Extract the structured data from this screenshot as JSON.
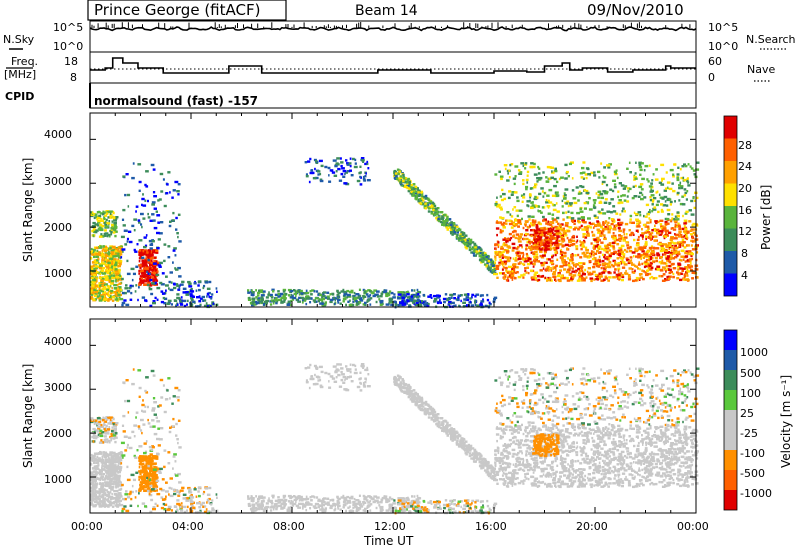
{
  "header": {
    "station": "Prince George (fitACF)",
    "beam": "Beam 14",
    "date": "09/Nov/2010"
  },
  "noise_panel": {
    "left_label": "N.Sky",
    "right_label": "N.Search",
    "ticks_left": [
      "10^5",
      "10^0"
    ],
    "ticks_right": [
      "10^5",
      "10^0"
    ]
  },
  "freq_panel": {
    "left_label_1": "Freq.",
    "left_label_2": "[MHz]",
    "right_label": "Nave",
    "ticks_left": [
      "18",
      "8"
    ],
    "ticks_right": [
      "60",
      "0"
    ]
  },
  "cpid": {
    "label": "CPID",
    "text": "normalsound (fast) -157"
  },
  "colors": {
    "power_scale": [
      "#0000ff",
      "#1e5aa8",
      "#3c8c5a",
      "#5ab43c",
      "#ffe000",
      "#ffa000",
      "#ff6000",
      "#e00000"
    ],
    "velocity_scale": [
      "#0000ff",
      "#1e5aa8",
      "#3c8c5a",
      "#5ac83c",
      "#c8c8c8",
      "#c8c8c8",
      "#ff9000",
      "#ff6000",
      "#e00000"
    ],
    "ground_scatter": "#c8c8c8"
  },
  "chart_data": [
    {
      "type": "heatmap",
      "title": "",
      "xlabel": "",
      "ylabel": "Slant Range [km]",
      "colorbar_label": "Power [dB]",
      "colorbar_ticks": [
        "4",
        "8",
        "12",
        "16",
        "20",
        "24",
        "28"
      ],
      "x_ticks": [
        "00:00",
        "04:00",
        "08:00",
        "12:00",
        "16:00",
        "20:00",
        "00:00"
      ],
      "y_ticks": [
        "1000",
        "2000",
        "3000",
        "4000"
      ],
      "xlim": [
        0,
        24
      ],
      "ylim": [
        180,
        4600
      ],
      "features": [
        {
          "name": "early E-region patch",
          "time": [
            0.0,
            1.2
          ],
          "range": [
            400,
            1500
          ],
          "level": "high"
        },
        {
          "name": "strong echo",
          "time": [
            1.9,
            2.6
          ],
          "range": [
            700,
            1500
          ],
          "level": "very-high"
        },
        {
          "name": "near range band",
          "time": [
            6.5,
            12.5
          ],
          "range": [
            300,
            600
          ],
          "level": "medium"
        },
        {
          "name": "descending scatter trace",
          "time": [
            12.0,
            16.0
          ],
          "range": [
            1000,
            3300
          ],
          "level": "medium"
        },
        {
          "name": "night F-region",
          "time": [
            16.0,
            24.0
          ],
          "range": [
            800,
            2200
          ],
          "level": "very-high"
        }
      ]
    },
    {
      "type": "heatmap",
      "title": "",
      "xlabel": "Time UT",
      "ylabel": "Slant Range [km]",
      "colorbar_label": "Velocity [m s⁻¹]",
      "colorbar_ticks": [
        "1000",
        "500",
        "100",
        "25",
        "-25",
        "-100",
        "-500",
        "-1000"
      ],
      "x_ticks": [
        "00:00",
        "04:00",
        "08:00",
        "12:00",
        "16:00",
        "20:00",
        "00:00"
      ],
      "y_ticks": [
        "1000",
        "2000",
        "3000",
        "4000"
      ],
      "xlim": [
        0,
        24
      ],
      "ylim": [
        180,
        4600
      ]
    }
  ]
}
